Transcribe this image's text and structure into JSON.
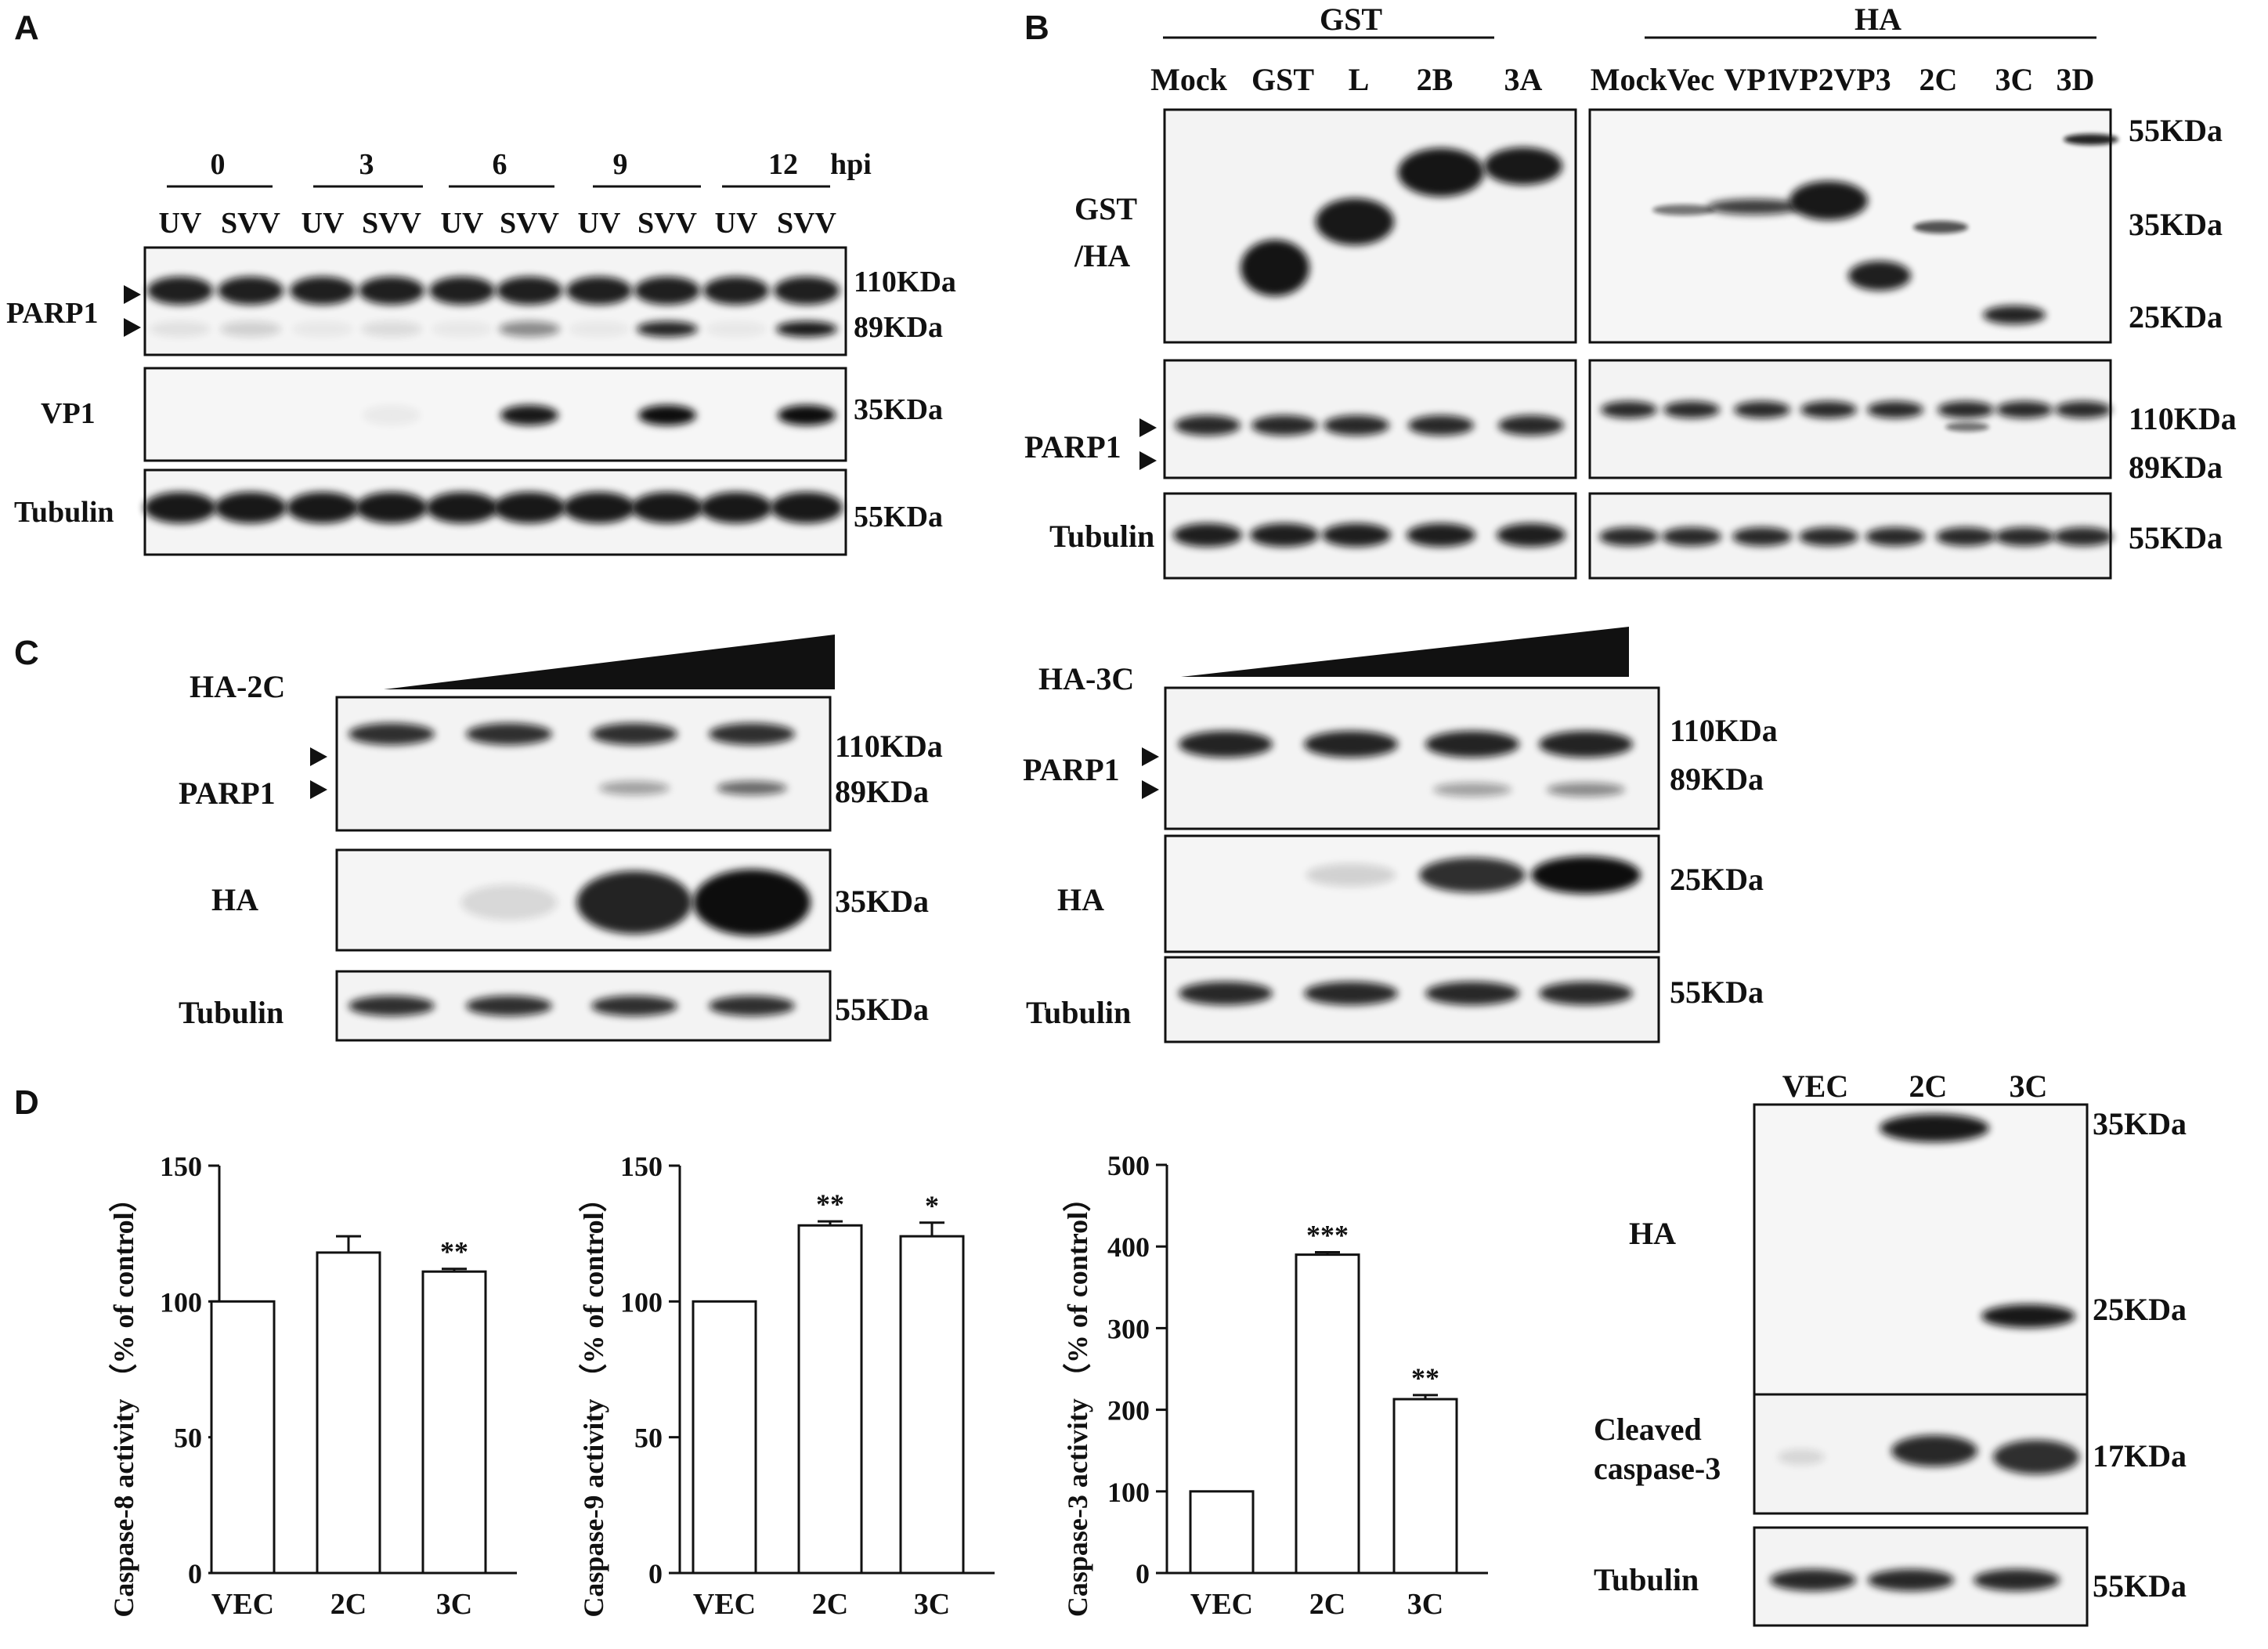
{
  "figure": {
    "panel_letters": {
      "A": "A",
      "B": "B",
      "C": "C",
      "D": "D"
    }
  },
  "panel_a": {
    "timepoints": [
      "0",
      "3",
      "6",
      "9",
      "12"
    ],
    "time_unit": "hpi",
    "lanes": [
      "UV",
      "SVV",
      "UV",
      "SVV",
      "UV",
      "SVV",
      "UV",
      "SVV",
      "UV",
      "SVV"
    ],
    "row_labels": {
      "parp1": "PARP1",
      "vp1": "VP1",
      "tubulin": "Tubulin"
    },
    "size_markers": {
      "m110": "110KDa",
      "m89": "89KDa",
      "m35": "35KDa",
      "m55": "55KDa"
    },
    "cleaved_parp1_intensity": [
      0.08,
      0.15,
      0.05,
      0.1,
      0.05,
      0.45,
      0.05,
      0.9,
      0.05,
      0.95
    ],
    "vp1_intensity": [
      0,
      0,
      0,
      0.05,
      0,
      0.95,
      0,
      1,
      0,
      1
    ]
  },
  "panel_b": {
    "group_gst": "GST",
    "group_ha": "HA",
    "gst_lanes": [
      "Mock",
      "GST",
      "L",
      "2B",
      "3A"
    ],
    "ha_lanes": [
      "MockVec",
      "VP1",
      "VP2",
      "VP3",
      "2C",
      "3C",
      "3D"
    ],
    "row_labels": {
      "gst_ha_1": "GST",
      "gst_ha_2": "/HA",
      "parp1": "PARP1",
      "tubulin": "Tubulin"
    },
    "size_markers": {
      "m55a": "55KDa",
      "m35": "35KDa",
      "m25": "25KDa",
      "m110": "110KDa",
      "m89": "89KDa",
      "m55b": "55KDa"
    }
  },
  "panel_c": {
    "left": {
      "title": "HA-2C",
      "row_labels": {
        "parp1": "PARP1",
        "ha": "HA",
        "tubulin": "Tubulin"
      },
      "size_markers": {
        "m110": "110KDa",
        "m89": "89KDa",
        "m35": "35KDa",
        "m55": "55KDa"
      },
      "cleaved_parp1_intensity": [
        0,
        0,
        0.35,
        0.6
      ],
      "ha_intensity": [
        0,
        0.12,
        0.9,
        1
      ]
    },
    "right": {
      "title": "HA-3C",
      "row_labels": {
        "parp1": "PARP1",
        "ha": "HA",
        "tubulin": "Tubulin"
      },
      "size_markers": {
        "m110": "110KDa",
        "m89": "89KDa",
        "m25": "25KDa",
        "m55": "55KDa"
      },
      "cleaved_parp1_intensity": [
        0,
        0,
        0.35,
        0.45
      ],
      "ha_intensity": [
        0,
        0.15,
        0.85,
        1
      ]
    }
  },
  "chart_data": [
    {
      "type": "bar",
      "categories": [
        "VEC",
        "2C",
        "3C"
      ],
      "values": [
        100,
        118,
        111
      ],
      "errors": [
        0,
        6,
        1
      ],
      "significance": [
        "",
        "",
        "**"
      ],
      "ylabel": "Caspase-8 activity",
      "ylabel_unit": "（% of control）",
      "yticks": [
        "0",
        "50",
        "100",
        "150"
      ],
      "ylim": [
        0,
        150
      ],
      "grid": false
    },
    {
      "type": "bar",
      "categories": [
        "VEC",
        "2C",
        "3C"
      ],
      "values": [
        100,
        128,
        124
      ],
      "errors": [
        0,
        1.5,
        5
      ],
      "significance": [
        "",
        "**",
        "*"
      ],
      "ylabel": "Caspase-9 activity",
      "ylabel_unit": "（% of control）",
      "yticks": [
        "0",
        "50",
        "100",
        "150"
      ],
      "ylim": [
        0,
        150
      ],
      "grid": false
    },
    {
      "type": "bar",
      "categories": [
        "VEC",
        "2C",
        "3C"
      ],
      "values": [
        100,
        390,
        213
      ],
      "errors": [
        0,
        3,
        5
      ],
      "significance": [
        "",
        "***",
        "**"
      ],
      "ylabel": "Caspase-3 activity",
      "ylabel_unit": "（% of control）",
      "yticks": [
        "0",
        "100",
        "200",
        "300",
        "400",
        "500"
      ],
      "ylim": [
        0,
        500
      ],
      "grid": false
    }
  ],
  "panel_d_blot": {
    "lanes": [
      "VEC",
      "2C",
      "3C"
    ],
    "row_labels": {
      "ha": "HA",
      "cleaved_1": "Cleaved",
      "cleaved_2": "caspase-3",
      "tubulin": "Tubulin"
    },
    "size_markers": {
      "m35": "35KDa",
      "m25": "25KDa",
      "m17": "17KDa",
      "m55": "55KDa"
    }
  }
}
